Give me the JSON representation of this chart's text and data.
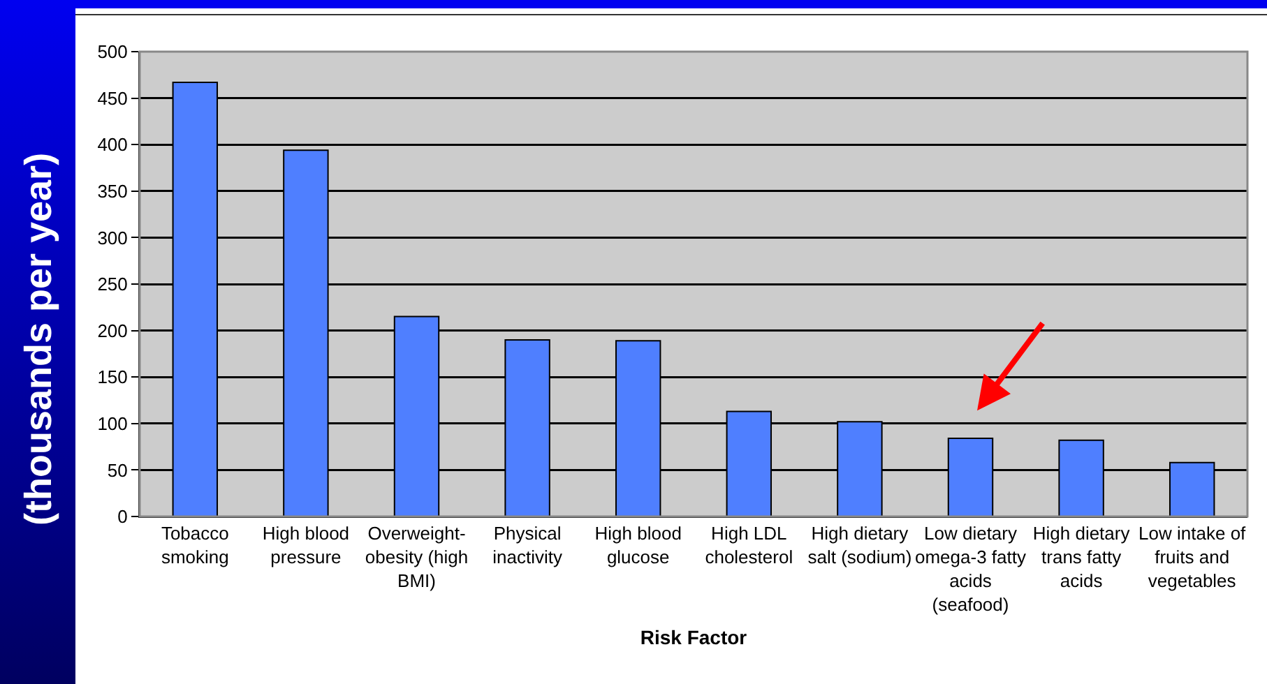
{
  "chart_data": {
    "type": "bar",
    "xlabel": "Risk Factor",
    "ylabel": "(thousands per year)",
    "categories": [
      "Tobacco smoking",
      "High blood pressure",
      "Overweight-obesity (high BMI)",
      "Physical inactivity",
      "High blood glucose",
      "High LDL cholesterol",
      "High dietary salt (sodium)",
      "Low dietary omega-3 fatty acids (seafood)",
      "High dietary trans fatty acids",
      "Low intake of fruits and vegetables"
    ],
    "values": [
      467,
      394,
      215,
      190,
      189,
      113,
      102,
      84,
      82,
      58
    ],
    "color": "#4f7fff",
    "ylim": [
      0,
      500
    ],
    "yticks": [
      0,
      50,
      100,
      150,
      200,
      250,
      300,
      350,
      400,
      450,
      500
    ],
    "grid": "y",
    "legend": false
  }
}
